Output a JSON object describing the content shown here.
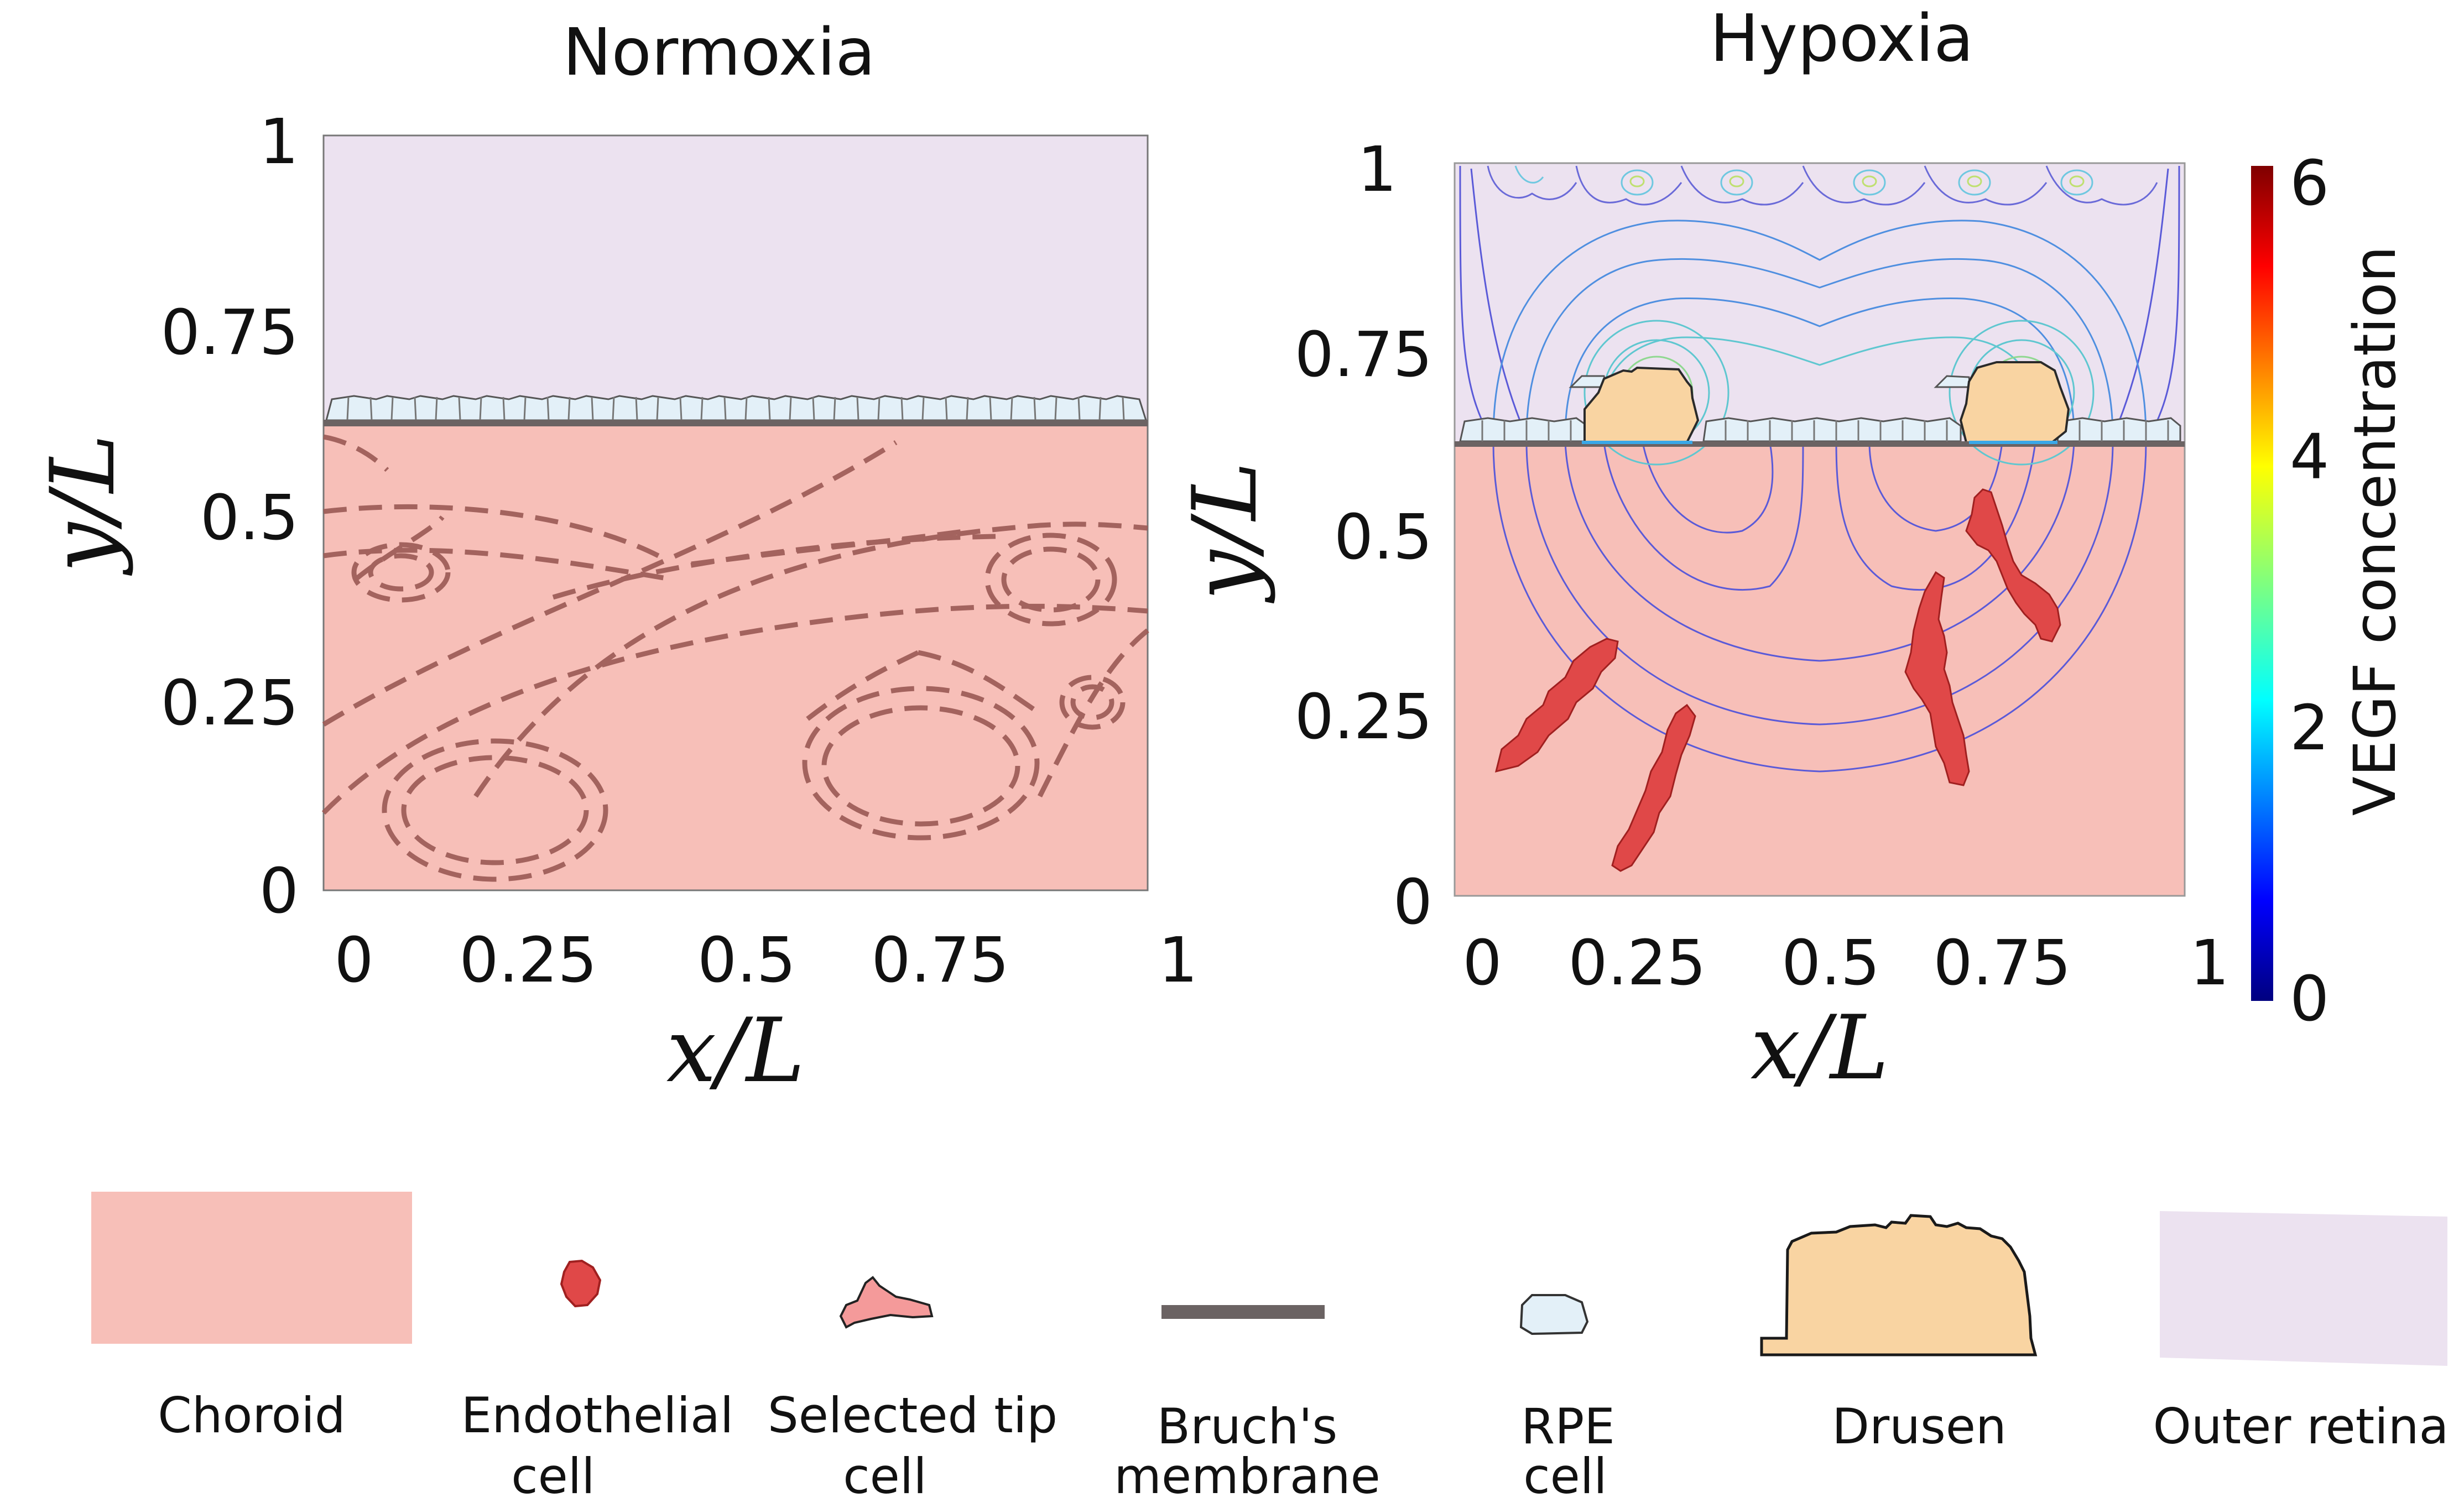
{
  "panels": {
    "normoxia": {
      "title": "Normoxia",
      "x_ticks": [
        "0",
        "0.25",
        "0.5",
        "0.75",
        "1"
      ],
      "y_ticks": [
        "0",
        "0.25",
        "0.5",
        "0.75",
        "1"
      ],
      "xlabel": "x/L",
      "ylabel": "y/L"
    },
    "hypoxia": {
      "title": "Hypoxia",
      "x_ticks": [
        "0",
        "0.25",
        "0.5",
        "0.75",
        "1"
      ],
      "y_ticks": [
        "0",
        "0.25",
        "0.5",
        "0.75",
        "1"
      ],
      "xlabel": "x/L",
      "ylabel": "y/L"
    }
  },
  "colorbar": {
    "title": "VEGF concentration",
    "ticks": [
      "0",
      "2",
      "4",
      "6"
    ]
  },
  "legend": {
    "choroid": "Choroid",
    "endothelial": [
      "Endothelial",
      "cell"
    ],
    "tip": [
      "Selected tip",
      "cell"
    ],
    "bruch": [
      "Bruch's",
      "membrane"
    ],
    "rpe": [
      "RPE",
      "cell"
    ],
    "drusen": "Drusen",
    "outer_retina": "Outer retina"
  },
  "colors": {
    "choroid": "#f7bfb8",
    "outer_retina": "#ece2f0",
    "rpe": "#e3f0f8",
    "drusen": "#f9d4a2",
    "endothelial": "#e04848",
    "tip": "#f49a9a",
    "bruch": "#6b6363",
    "dashed": "#9b5a55"
  }
}
